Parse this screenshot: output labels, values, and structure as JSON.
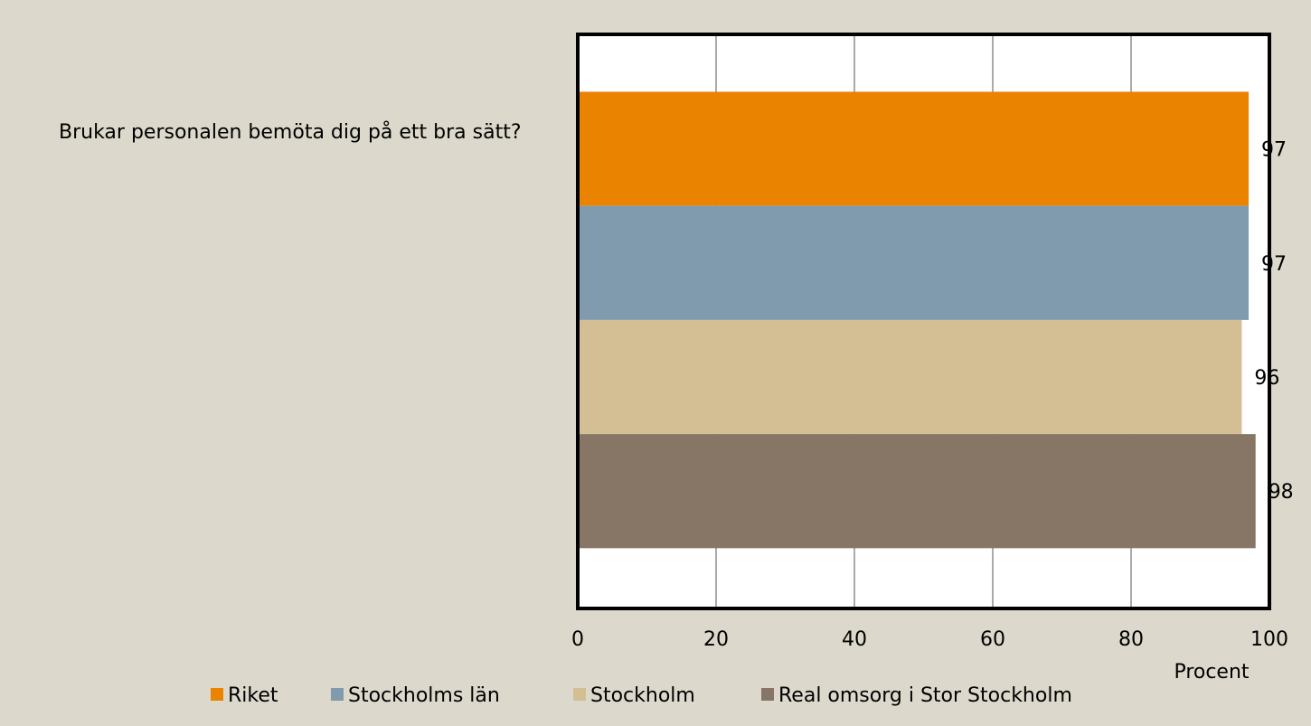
{
  "chart_data": {
    "type": "hbar",
    "categories": [
      "Brukar personalen bemöta dig på ett bra sätt?"
    ],
    "series": [
      {
        "name": "Riket",
        "color": "#e98300",
        "values": [
          97
        ]
      },
      {
        "name": "Stockholms län",
        "color": "#7f9bad",
        "values": [
          97
        ]
      },
      {
        "name": "Stockholm",
        "color": "#d4be94",
        "values": [
          96
        ]
      },
      {
        "name": "Real omsorg i Stor Stockholm",
        "color": "#877665",
        "values": [
          98
        ]
      }
    ],
    "xlabel": "Procent",
    "xlim": [
      0,
      100
    ],
    "xticks": [
      0,
      20,
      40,
      60,
      80,
      100
    ],
    "grid": true,
    "legend": "bottom"
  }
}
